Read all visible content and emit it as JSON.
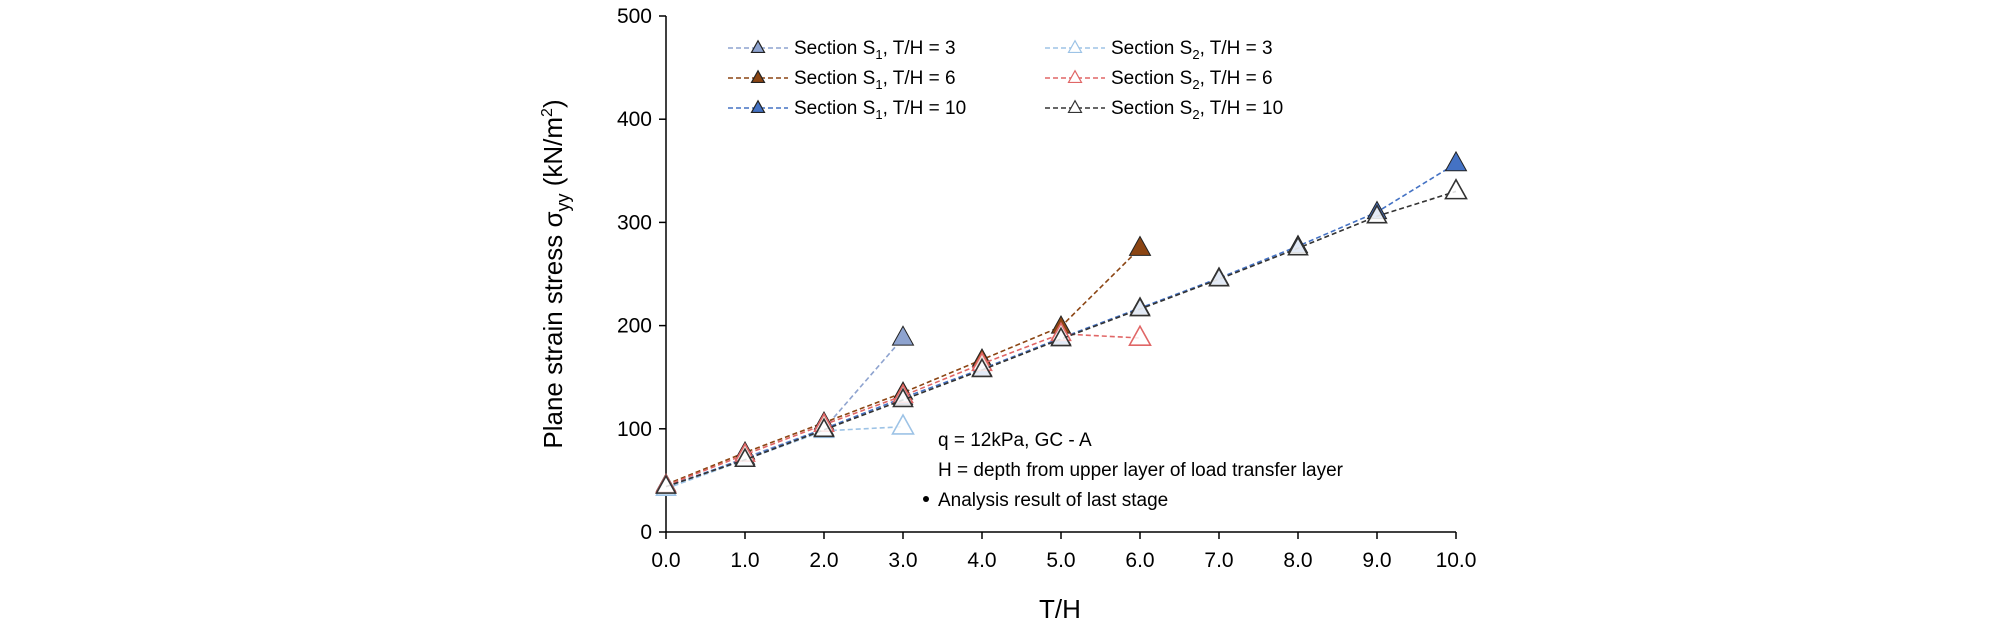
{
  "chart_data": {
    "type": "line",
    "xlabel": "T/H",
    "ylabel_main": "Plane strain stress σ",
    "ylabel_sub": "yy",
    "ylabel_unit_pre": " (kN/m",
    "ylabel_unit_sup": "2",
    "ylabel_unit_post": ")",
    "xlim": [
      0,
      10
    ],
    "ylim": [
      0,
      500
    ],
    "xticks": [
      "0.0",
      "1.0",
      "2.0",
      "3.0",
      "4.0",
      "5.0",
      "6.0",
      "7.0",
      "8.0",
      "9.0",
      "10.0"
    ],
    "yticks": [
      "0",
      "100",
      "200",
      "300",
      "400",
      "500"
    ],
    "grid": false,
    "legend_position": "top-left",
    "series": [
      {
        "name": "Section S1, T/H = 3",
        "section": "S",
        "sub": "1",
        "suffix": ",  T/H = 3",
        "color": "#8EA3CF",
        "marker": "filled-triangle",
        "x": [
          0,
          1,
          2,
          3
        ],
        "y": [
          42,
          72,
          100,
          188
        ]
      },
      {
        "name": "Section S1, T/H = 6",
        "section": "S",
        "sub": "1",
        "suffix": ",  T/H = 6",
        "color": "#8B4513",
        "marker": "filled-triangle",
        "x": [
          0,
          1,
          2,
          3,
          4,
          5,
          6
        ],
        "y": [
          46,
          77,
          106,
          135,
          167,
          199,
          275
        ]
      },
      {
        "name": "Section S1, T/H = 10",
        "section": "S",
        "sub": "1",
        "suffix": ",  T/H = 10",
        "color": "#4472C4",
        "marker": "filled-triangle",
        "x": [
          0,
          1,
          2,
          3,
          4,
          5,
          6,
          7,
          8,
          9,
          10
        ],
        "y": [
          44,
          71,
          100,
          130,
          158,
          188,
          217,
          246,
          277,
          310,
          357
        ]
      },
      {
        "name": "Section S2, T/H = 3",
        "section": "S",
        "sub": "2",
        "suffix": ",  T/H = 3",
        "color": "#9DC3E6",
        "marker": "hollow-triangle",
        "x": [
          0,
          1,
          2,
          3
        ],
        "y": [
          42,
          70,
          98,
          102
        ]
      },
      {
        "name": "Section S2, T/H = 6",
        "section": "S",
        "sub": "2",
        "suffix": ",  T/H = 6",
        "color": "#E06666",
        "marker": "hollow-triangle",
        "x": [
          0,
          1,
          2,
          3,
          4,
          5,
          6
        ],
        "y": [
          45,
          75,
          104,
          132,
          163,
          192,
          188
        ]
      },
      {
        "name": "Section S2, T/H = 10",
        "section": "S",
        "sub": "2",
        "suffix": ",  T/H = 10",
        "color": "#333333",
        "marker": "hollow-triangle",
        "x": [
          0,
          1,
          2,
          3,
          4,
          5,
          6,
          7,
          8,
          9,
          10
        ],
        "y": [
          44,
          70,
          99,
          128,
          157,
          187,
          216,
          245,
          275,
          306,
          330
        ]
      }
    ],
    "annotations": [
      "q = 12kPa,  GC - A",
      "H = depth from upper layer of  load transfer layer",
      "Analysis result of  last stage"
    ]
  }
}
